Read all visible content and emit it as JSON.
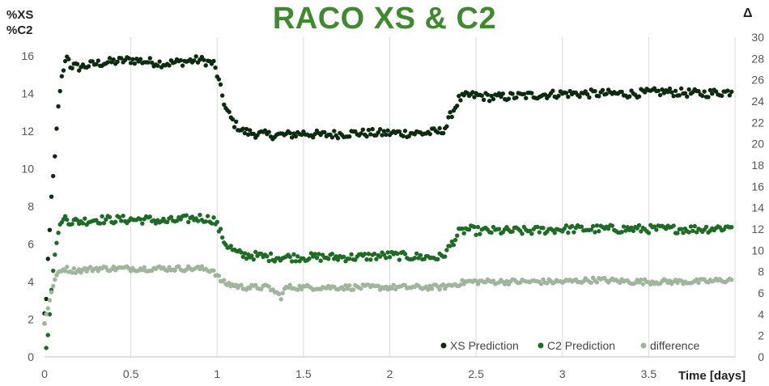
{
  "chart_data": {
    "type": "scatter",
    "title": "RACO XS & C2",
    "ylabel_left": [
      "%XS",
      "%C2"
    ],
    "ylabel_right": "Δ",
    "xlabel": "Time [days]",
    "xlim": [
      0,
      4.0
    ],
    "ylim_left": [
      0,
      17
    ],
    "ylim_right": [
      0,
      30
    ],
    "x_ticks": [
      "0",
      "0.5",
      "1",
      "1.5",
      "2",
      "2.5",
      "3",
      "3.5"
    ],
    "y_ticks_left": [
      "0",
      "2",
      "4",
      "6",
      "8",
      "10",
      "12",
      "14",
      "16"
    ],
    "y_ticks_right": [
      "0",
      "2",
      "4",
      "6",
      "8",
      "10",
      "12",
      "14",
      "16",
      "18",
      "20",
      "22",
      "24",
      "26",
      "28",
      "30"
    ],
    "grid": "vertical",
    "legend_position": "bottom-right",
    "series": [
      {
        "name": "XS Prediction",
        "color": "#0d2b10",
        "axis": "left",
        "points": [
          [
            0.0,
            2.3
          ],
          [
            0.01,
            3.1
          ],
          [
            0.02,
            5.2
          ],
          [
            0.03,
            6.7
          ],
          [
            0.04,
            8.5
          ],
          [
            0.05,
            9.6
          ],
          [
            0.06,
            10.7
          ],
          [
            0.07,
            12.1
          ],
          [
            0.08,
            13.3
          ],
          [
            0.09,
            14.1
          ],
          [
            0.1,
            14.9
          ],
          [
            0.12,
            15.6
          ],
          [
            0.13,
            16.1
          ],
          [
            0.15,
            15.5
          ],
          [
            0.2,
            15.4
          ],
          [
            0.3,
            15.6
          ],
          [
            0.4,
            15.7
          ],
          [
            0.5,
            15.8
          ],
          [
            0.6,
            15.7
          ],
          [
            0.7,
            15.6
          ],
          [
            0.8,
            15.7
          ],
          [
            0.9,
            15.8
          ],
          [
            0.98,
            15.6
          ],
          [
            1.0,
            15.0
          ],
          [
            1.03,
            13.9
          ],
          [
            1.05,
            13.2
          ],
          [
            1.08,
            12.7
          ],
          [
            1.1,
            12.4
          ],
          [
            1.15,
            12.0
          ],
          [
            1.2,
            11.9
          ],
          [
            1.3,
            11.8
          ],
          [
            1.4,
            11.8
          ],
          [
            1.5,
            11.9
          ],
          [
            1.6,
            11.8
          ],
          [
            1.8,
            11.9
          ],
          [
            2.0,
            11.9
          ],
          [
            2.2,
            11.9
          ],
          [
            2.3,
            12.0
          ],
          [
            2.33,
            12.3
          ],
          [
            2.35,
            12.8
          ],
          [
            2.38,
            13.3
          ],
          [
            2.4,
            13.7
          ],
          [
            2.45,
            13.9
          ],
          [
            2.5,
            13.9
          ],
          [
            2.6,
            13.8
          ],
          [
            2.8,
            13.9
          ],
          [
            3.0,
            14.0
          ],
          [
            3.2,
            14.0
          ],
          [
            3.4,
            14.0
          ],
          [
            3.6,
            14.1
          ],
          [
            3.8,
            14.0
          ],
          [
            3.98,
            14.1
          ]
        ]
      },
      {
        "name": "C2 Prediction",
        "color": "#1e6b26",
        "axis": "left",
        "points": [
          [
            0.0,
            1.8
          ],
          [
            0.01,
            0.5
          ],
          [
            0.02,
            1.2
          ],
          [
            0.03,
            2.3
          ],
          [
            0.04,
            3.6
          ],
          [
            0.05,
            4.6
          ],
          [
            0.06,
            5.4
          ],
          [
            0.07,
            6.1
          ],
          [
            0.08,
            6.6
          ],
          [
            0.09,
            7.0
          ],
          [
            0.1,
            7.2
          ],
          [
            0.12,
            7.4
          ],
          [
            0.15,
            7.2
          ],
          [
            0.2,
            7.2
          ],
          [
            0.3,
            7.3
          ],
          [
            0.4,
            7.3
          ],
          [
            0.5,
            7.3
          ],
          [
            0.6,
            7.3
          ],
          [
            0.7,
            7.2
          ],
          [
            0.8,
            7.3
          ],
          [
            0.9,
            7.4
          ],
          [
            0.98,
            7.3
          ],
          [
            1.0,
            7.0
          ],
          [
            1.03,
            6.4
          ],
          [
            1.05,
            6.0
          ],
          [
            1.08,
            5.8
          ],
          [
            1.1,
            5.6
          ],
          [
            1.15,
            5.4
          ],
          [
            1.2,
            5.4
          ],
          [
            1.3,
            5.3
          ],
          [
            1.4,
            5.3
          ],
          [
            1.5,
            5.3
          ],
          [
            1.6,
            5.3
          ],
          [
            1.8,
            5.3
          ],
          [
            2.0,
            5.4
          ],
          [
            2.2,
            5.3
          ],
          [
            2.3,
            5.3
          ],
          [
            2.33,
            5.6
          ],
          [
            2.35,
            5.9
          ],
          [
            2.38,
            6.3
          ],
          [
            2.4,
            6.6
          ],
          [
            2.45,
            6.8
          ],
          [
            2.5,
            6.7
          ],
          [
            2.6,
            6.7
          ],
          [
            2.8,
            6.7
          ],
          [
            3.0,
            6.8
          ],
          [
            3.2,
            6.8
          ],
          [
            3.4,
            6.8
          ],
          [
            3.6,
            6.8
          ],
          [
            3.8,
            6.8
          ],
          [
            3.98,
            6.9
          ]
        ]
      },
      {
        "name": "difference",
        "color": "#9fb59c",
        "axis": "left",
        "points": [
          [
            0.0,
            1.8
          ],
          [
            0.01,
            2.3
          ],
          [
            0.02,
            2.6
          ],
          [
            0.03,
            3.0
          ],
          [
            0.04,
            3.4
          ],
          [
            0.05,
            3.8
          ],
          [
            0.06,
            4.1
          ],
          [
            0.07,
            4.3
          ],
          [
            0.08,
            4.5
          ],
          [
            0.1,
            4.6
          ],
          [
            0.12,
            4.7
          ],
          [
            0.15,
            4.6
          ],
          [
            0.2,
            4.6
          ],
          [
            0.3,
            4.7
          ],
          [
            0.4,
            4.7
          ],
          [
            0.5,
            4.7
          ],
          [
            0.6,
            4.7
          ],
          [
            0.7,
            4.7
          ],
          [
            0.8,
            4.7
          ],
          [
            0.9,
            4.7
          ],
          [
            0.98,
            4.6
          ],
          [
            1.0,
            4.3
          ],
          [
            1.03,
            4.0
          ],
          [
            1.05,
            3.9
          ],
          [
            1.1,
            3.8
          ],
          [
            1.15,
            3.7
          ],
          [
            1.2,
            3.7
          ],
          [
            1.3,
            3.7
          ],
          [
            1.37,
            3.2
          ],
          [
            1.4,
            3.7
          ],
          [
            1.5,
            3.7
          ],
          [
            1.6,
            3.7
          ],
          [
            1.8,
            3.7
          ],
          [
            2.0,
            3.7
          ],
          [
            2.2,
            3.7
          ],
          [
            2.3,
            3.7
          ],
          [
            2.35,
            3.8
          ],
          [
            2.4,
            3.9
          ],
          [
            2.45,
            4.0
          ],
          [
            2.5,
            4.0
          ],
          [
            2.6,
            4.0
          ],
          [
            2.8,
            4.0
          ],
          [
            3.0,
            4.0
          ],
          [
            3.2,
            4.1
          ],
          [
            3.4,
            4.0
          ],
          [
            3.6,
            4.0
          ],
          [
            3.8,
            4.0
          ],
          [
            3.98,
            4.1
          ]
        ]
      }
    ]
  }
}
